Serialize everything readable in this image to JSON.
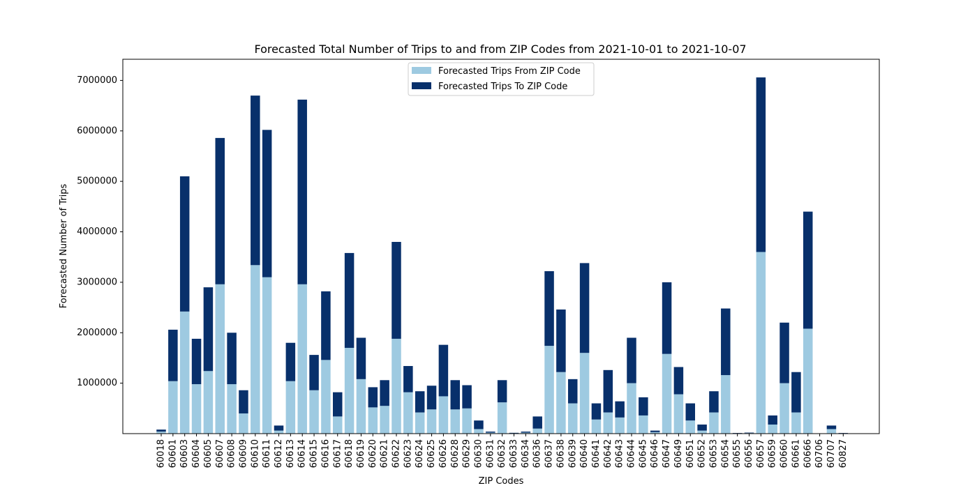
{
  "chart_data": {
    "type": "bar",
    "stacked": true,
    "title": "Forecasted Total Number of Trips to and from ZIP Codes from 2021-10-01 to 2021-10-07",
    "xlabel": "ZIP Codes",
    "ylabel": "Forecasted Number of Trips",
    "ylim": [
      0,
      7420000
    ],
    "yticks": [
      1000000,
      2000000,
      3000000,
      4000000,
      5000000,
      6000000,
      7000000
    ],
    "grid": false,
    "legend_position": "top-center",
    "categories": [
      "60018",
      "60601",
      "60603",
      "60604",
      "60605",
      "60607",
      "60608",
      "60609",
      "60610",
      "60611",
      "60612",
      "60613",
      "60614",
      "60615",
      "60616",
      "60617",
      "60618",
      "60619",
      "60620",
      "60621",
      "60622",
      "60623",
      "60624",
      "60625",
      "60626",
      "60628",
      "60629",
      "60630",
      "60631",
      "60632",
      "60633",
      "60634",
      "60636",
      "60637",
      "60638",
      "60639",
      "60640",
      "60641",
      "60642",
      "60643",
      "60644",
      "60645",
      "60646",
      "60647",
      "60649",
      "60651",
      "60652",
      "60653",
      "60654",
      "60655",
      "60656",
      "60657",
      "60659",
      "60660",
      "60661",
      "60666",
      "60706",
      "60707",
      "60827"
    ],
    "series": [
      {
        "name": "Forecasted Trips From ZIP Code",
        "color": "#9ecae1",
        "values": [
          40000,
          1040000,
          2420000,
          980000,
          1240000,
          2960000,
          980000,
          400000,
          3340000,
          3100000,
          60000,
          1040000,
          2960000,
          860000,
          1460000,
          340000,
          1700000,
          1080000,
          520000,
          550000,
          1880000,
          820000,
          420000,
          480000,
          740000,
          480000,
          500000,
          90000,
          20000,
          620000,
          8000,
          20000,
          100000,
          1740000,
          1220000,
          600000,
          1600000,
          280000,
          420000,
          320000,
          1000000,
          360000,
          30000,
          1580000,
          780000,
          260000,
          60000,
          420000,
          1160000,
          6000,
          10000,
          3600000,
          180000,
          1000000,
          420000,
          2080000,
          0,
          90000,
          6000
        ]
      },
      {
        "name": "Forecasted Trips To ZIP Code",
        "color": "#08306b",
        "values": [
          40000,
          1020000,
          2680000,
          900000,
          1660000,
          2900000,
          1020000,
          460000,
          3360000,
          2920000,
          100000,
          760000,
          3660000,
          700000,
          1360000,
          480000,
          1880000,
          820000,
          400000,
          510000,
          1920000,
          520000,
          420000,
          470000,
          1020000,
          580000,
          460000,
          170000,
          20000,
          440000,
          8000,
          20000,
          240000,
          1480000,
          1240000,
          480000,
          1780000,
          320000,
          840000,
          320000,
          900000,
          360000,
          30000,
          1420000,
          540000,
          340000,
          120000,
          420000,
          1320000,
          6000,
          10000,
          3460000,
          180000,
          1200000,
          800000,
          2320000,
          0,
          70000,
          6000
        ]
      }
    ]
  }
}
